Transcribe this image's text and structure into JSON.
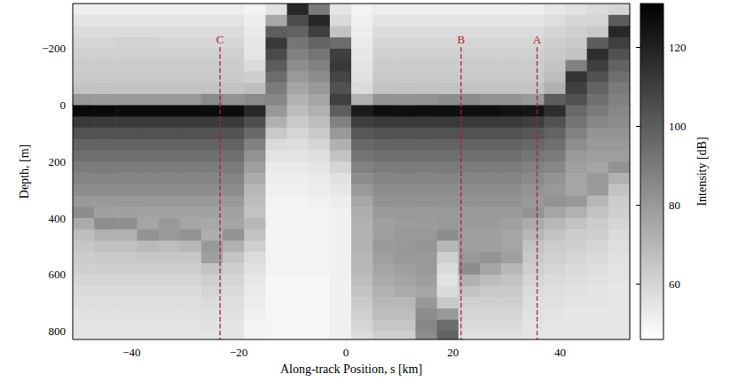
{
  "chart_data": {
    "type": "heatmap",
    "x_label": "Along-track Position, s [km]",
    "y_label": "Depth, [m]",
    "xlim": [
      -51,
      53
    ],
    "ylim": [
      -360,
      830
    ],
    "xticks": [
      {
        "value": -40,
        "label": "−40"
      },
      {
        "value": -20,
        "label": "−20"
      },
      0,
      20,
      40
    ],
    "yticks": [
      {
        "value": -200,
        "label": "−200"
      },
      0,
      200,
      400,
      600,
      800
    ],
    "x": [
      -49,
      -45,
      -41,
      -37,
      -33,
      -29,
      -25,
      -21,
      -17,
      -13,
      -9,
      -5,
      -1,
      3,
      7,
      11,
      15,
      19,
      23,
      27,
      31,
      35,
      39,
      43,
      47,
      51
    ],
    "y": [
      -340,
      -300,
      -260,
      -220,
      -180,
      -140,
      -100,
      -60,
      -20,
      20,
      60,
      100,
      140,
      180,
      220,
      260,
      300,
      340,
      380,
      420,
      460,
      500,
      540,
      580,
      620,
      660,
      700,
      740,
      780,
      820
    ],
    "z": [
      [
        52,
        55,
        58,
        60,
        62,
        63,
        64,
        66,
        80,
        128,
        112,
        104,
        98,
        94,
        90,
        87,
        84,
        80,
        84,
        74,
        68,
        65,
        63,
        62,
        60,
        58,
        57,
        56,
        55,
        55
      ],
      [
        52,
        55,
        58,
        60,
        62,
        63,
        64,
        66,
        80,
        128,
        112,
        104,
        98,
        94,
        90,
        87,
        84,
        80,
        78,
        84,
        72,
        67,
        64,
        62,
        60,
        58,
        57,
        56,
        55,
        55
      ],
      [
        52,
        55,
        58,
        61,
        62,
        63,
        64,
        66,
        80,
        127,
        112,
        104,
        98,
        94,
        90,
        87,
        84,
        80,
        78,
        83,
        72,
        67,
        64,
        62,
        60,
        58,
        57,
        56,
        55,
        55
      ],
      [
        52,
        55,
        58,
        61,
        62,
        63,
        64,
        66,
        80,
        127,
        112,
        104,
        98,
        94,
        90,
        87,
        84,
        80,
        77,
        76,
        82,
        69,
        65,
        62,
        60,
        58,
        57,
        56,
        55,
        55
      ],
      [
        52,
        55,
        58,
        60,
        62,
        63,
        64,
        66,
        80,
        127,
        112,
        104,
        98,
        94,
        90,
        87,
        84,
        80,
        77,
        80,
        80,
        68,
        65,
        62,
        60,
        58,
        57,
        56,
        55,
        55
      ],
      [
        52,
        55,
        58,
        60,
        62,
        63,
        64,
        66,
        80,
        127,
        112,
        104,
        98,
        94,
        90,
        87,
        84,
        80,
        77,
        76,
        82,
        70,
        65,
        62,
        60,
        58,
        57,
        56,
        55,
        55
      ],
      [
        52,
        55,
        58,
        60,
        62,
        63,
        64,
        66,
        85,
        127,
        112,
        104,
        98,
        94,
        90,
        87,
        84,
        80,
        77,
        75,
        73,
        80,
        78,
        66,
        62,
        60,
        58,
        57,
        56,
        55
      ],
      [
        52,
        55,
        58,
        60,
        62,
        63,
        64,
        66,
        82,
        127,
        112,
        104,
        98,
        94,
        90,
        87,
        84,
        80,
        77,
        76,
        82,
        72,
        66,
        62,
        60,
        58,
        57,
        56,
        55,
        55
      ],
      [
        50,
        52,
        53,
        54,
        55,
        58,
        62,
        68,
        85,
        118,
        105,
        96,
        88,
        82,
        78,
        74,
        70,
        68,
        66,
        70,
        66,
        62,
        58,
        56,
        54,
        53,
        52,
        51,
        50,
        50
      ],
      [
        56,
        75,
        100,
        112,
        106,
        100,
        95,
        90,
        86,
        80,
        72,
        64,
        58,
        55,
        53,
        52,
        51,
        50,
        50,
        50,
        50,
        50,
        50,
        50,
        49,
        49,
        49,
        49,
        49,
        49
      ],
      [
        118,
        106,
        98,
        92,
        88,
        84,
        80,
        76,
        72,
        68,
        64,
        60,
        57,
        55,
        53,
        52,
        51,
        50,
        50,
        50,
        50,
        50,
        50,
        50,
        49,
        49,
        49,
        49,
        49,
        49
      ],
      [
        90,
        118,
        110,
        98,
        92,
        88,
        84,
        80,
        76,
        72,
        68,
        64,
        60,
        57,
        55,
        53,
        52,
        51,
        50,
        50,
        50,
        50,
        50,
        50,
        49,
        49,
        49,
        49,
        49,
        49
      ],
      [
        55,
        58,
        66,
        95,
        110,
        112,
        108,
        104,
        110,
        100,
        88,
        80,
        72,
        66,
        60,
        56,
        54,
        52,
        51,
        51,
        51,
        51,
        51,
        51,
        51,
        51,
        51,
        51,
        51,
        51
      ],
      [
        50,
        51,
        52,
        53,
        54,
        55,
        56,
        58,
        72,
        122,
        110,
        102,
        96,
        92,
        88,
        84,
        80,
        76,
        73,
        72,
        72,
        72,
        70,
        70,
        68,
        66,
        64,
        62,
        60,
        58
      ],
      [
        52,
        55,
        58,
        60,
        62,
        63,
        64,
        66,
        82,
        126,
        112,
        104,
        98,
        94,
        90,
        87,
        84,
        82,
        80,
        78,
        78,
        80,
        78,
        76,
        74,
        72,
        70,
        68,
        65,
        62
      ],
      [
        52,
        55,
        58,
        60,
        62,
        63,
        64,
        66,
        82,
        126,
        112,
        104,
        98,
        94,
        90,
        87,
        84,
        82,
        80,
        79,
        80,
        80,
        80,
        78,
        76,
        74,
        70,
        68,
        65,
        62
      ],
      [
        52,
        55,
        58,
        60,
        62,
        63,
        64,
        66,
        82,
        126,
        112,
        104,
        98,
        94,
        90,
        87,
        84,
        82,
        80,
        79,
        80,
        81,
        80,
        80,
        78,
        76,
        80,
        84,
        86,
        84
      ],
      [
        52,
        55,
        58,
        60,
        62,
        63,
        64,
        66,
        84,
        126,
        112,
        104,
        98,
        94,
        90,
        87,
        84,
        82,
        80,
        80,
        84,
        70,
        62,
        58,
        56,
        58,
        64,
        80,
        95,
        98
      ],
      [
        52,
        55,
        58,
        60,
        62,
        63,
        64,
        66,
        84,
        126,
        112,
        104,
        98,
        94,
        90,
        87,
        84,
        82,
        80,
        79,
        78,
        78,
        80,
        84,
        72,
        66,
        62,
        60,
        58,
        56
      ],
      [
        52,
        55,
        58,
        60,
        62,
        63,
        64,
        66,
        82,
        126,
        112,
        104,
        98,
        94,
        90,
        87,
        84,
        82,
        80,
        79,
        78,
        78,
        82,
        76,
        68,
        64,
        62,
        60,
        58,
        56
      ],
      [
        52,
        55,
        58,
        60,
        62,
        63,
        64,
        66,
        82,
        125,
        112,
        104,
        98,
        94,
        90,
        87,
        84,
        82,
        80,
        78,
        76,
        76,
        78,
        70,
        66,
        64,
        62,
        60,
        58,
        56
      ],
      [
        52,
        55,
        58,
        60,
        62,
        63,
        64,
        66,
        80,
        124,
        110,
        102,
        96,
        92,
        88,
        85,
        82,
        80,
        82,
        74,
        70,
        66,
        64,
        62,
        60,
        58,
        57,
        56,
        55,
        55
      ],
      [
        54,
        57,
        60,
        62,
        64,
        66,
        68,
        72,
        100,
        116,
        104,
        98,
        94,
        90,
        86,
        82,
        80,
        82,
        76,
        70,
        66,
        63,
        62,
        60,
        58,
        57,
        56,
        55,
        54,
        54
      ],
      [
        56,
        60,
        62,
        64,
        66,
        88,
        114,
        110,
        104,
        96,
        92,
        88,
        84,
        80,
        78,
        76,
        76,
        80,
        72,
        66,
        63,
        62,
        60,
        58,
        57,
        56,
        55,
        54,
        54,
        54
      ],
      [
        58,
        60,
        64,
        100,
        116,
        110,
        104,
        98,
        94,
        90,
        86,
        82,
        80,
        78,
        76,
        80,
        80,
        70,
        66,
        63,
        62,
        60,
        58,
        57,
        56,
        55,
        55,
        54,
        54,
        54
      ],
      [
        60,
        100,
        118,
        110,
        104,
        98,
        94,
        90,
        88,
        86,
        84,
        82,
        80,
        78,
        82,
        72,
        66,
        63,
        62,
        60,
        58,
        57,
        56,
        55,
        55,
        54,
        54,
        54,
        54,
        54
      ]
    ],
    "colorbar": {
      "label": "Intensity [dB]",
      "lim": [
        46,
        131
      ],
      "ticks": [
        60,
        80,
        100,
        120
      ]
    },
    "annotations": [
      {
        "label": "C",
        "x": -23.5,
        "y": -205
      },
      {
        "label": "B",
        "x": 21.5,
        "y": -205
      },
      {
        "label": "A",
        "x": 35.7,
        "y": -205
      }
    ]
  }
}
